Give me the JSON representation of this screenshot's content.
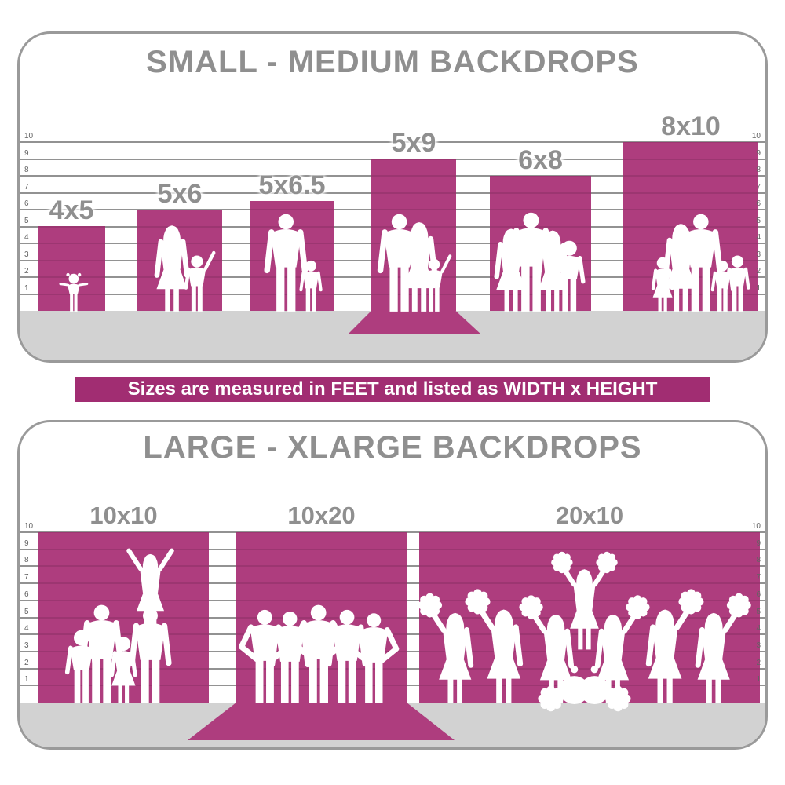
{
  "colors": {
    "accent": "#ae3d7e",
    "banner_bg": "#a12d72",
    "floor": "#d2d2d2",
    "panel_border": "#9a9a9a",
    "heading_gray": "#8f8f8f",
    "silhouette": "#ffffff"
  },
  "banner": {
    "text": "Sizes are measured in FEET and listed as WIDTH x HEIGHT"
  },
  "rulers": {
    "unit": "feet",
    "values": [
      "10",
      "9",
      "8",
      "7",
      "6",
      "5",
      "4",
      "3",
      "2",
      "1"
    ]
  },
  "panels": [
    {
      "title": "SMALL - MEDIUM BACKDROPS",
      "bars": [
        {
          "label": "4x5",
          "width_ft": 4,
          "height_ft": 5,
          "figures": "toddler girl"
        },
        {
          "label": "5x6",
          "width_ft": 5,
          "height_ft": 6,
          "figures": "woman and child waving"
        },
        {
          "label": "5x6.5",
          "width_ft": 5,
          "height_ft": 6.5,
          "figures": "man and boy"
        },
        {
          "label": "5x9",
          "width_ft": 5,
          "height_ft": 9,
          "figures": "man, woman and child on sweep floor",
          "sweep": true
        },
        {
          "label": "6x8",
          "width_ft": 6,
          "height_ft": 8,
          "figures": "family of four"
        },
        {
          "label": "8x10",
          "width_ft": 8,
          "height_ft": 10,
          "figures": "family of five"
        }
      ]
    },
    {
      "title": "LARGE - XLARGE BACKDROPS",
      "bars": [
        {
          "label": "10x10",
          "width_ft": 10,
          "height_ft": 10,
          "figures": "family group with person on shoulders"
        },
        {
          "label": "10x20",
          "width_ft": 10,
          "height_ft": 20,
          "figures": "sports team of five on sweep floor",
          "sweep": true
        },
        {
          "label": "20x10",
          "width_ft": 20,
          "height_ft": 10,
          "figures": "cheerleading squad with pom-poms pyramid"
        }
      ]
    }
  ]
}
